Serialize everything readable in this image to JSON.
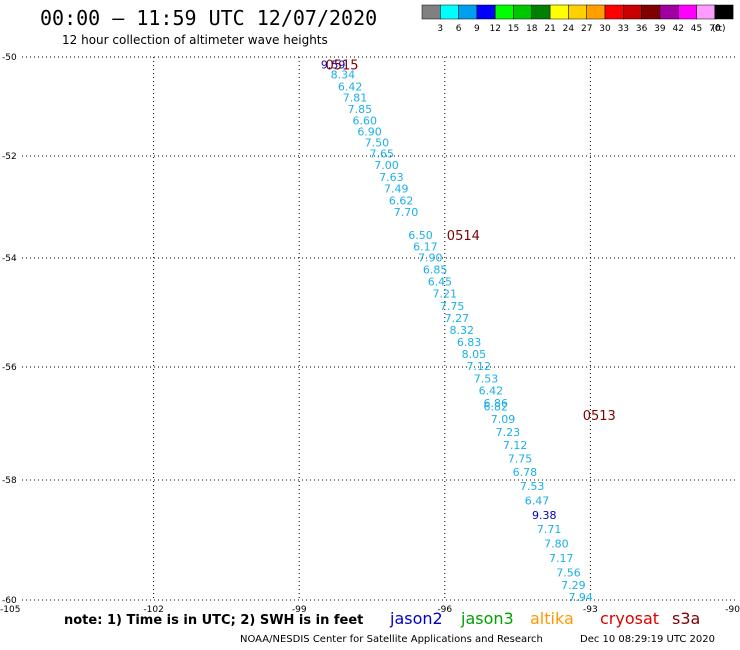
{
  "header": {
    "title": "00:00 – 11:59 UTC 12/07/2020",
    "subtitle": "12 hour collection of altimeter wave heights"
  },
  "legend": {
    "unit": "(ft)",
    "bins": [
      {
        "label": "3",
        "color": "#808080"
      },
      {
        "label": "6",
        "color": "#00ffff"
      },
      {
        "label": "9",
        "color": "#00a0f0"
      },
      {
        "label": "12",
        "color": "#0000ff"
      },
      {
        "label": "15",
        "color": "#00ff00"
      },
      {
        "label": "18",
        "color": "#00c800"
      },
      {
        "label": "21",
        "color": "#008000"
      },
      {
        "label": "24",
        "color": "#ffff00"
      },
      {
        "label": "27",
        "color": "#ffd000"
      },
      {
        "label": "30",
        "color": "#ffa000"
      },
      {
        "label": "33",
        "color": "#ff0000"
      },
      {
        "label": "36",
        "color": "#c80000"
      },
      {
        "label": "39",
        "color": "#800000"
      },
      {
        "label": "42",
        "color": "#a000a0"
      },
      {
        "label": "45",
        "color": "#ff00ff"
      },
      {
        "label": "70",
        "color": "#ff9cff"
      },
      {
        "label": "",
        "color": "#000000"
      }
    ]
  },
  "chart_data": {
    "type": "scatter",
    "xlabel": "",
    "ylabel": "",
    "xlim": [
      -105,
      -90
    ],
    "ylim": [
      -60,
      -50
    ],
    "x_ticks": [
      "-105",
      "-102",
      "-99",
      "-96",
      "-93",
      "-90"
    ],
    "y_ticks": [
      "-50",
      "-52",
      "-54",
      "-56",
      "-58",
      "-60"
    ],
    "grid": true,
    "colors": {
      "cyan": "#1ab0e8",
      "blue": "#0000c8",
      "pass": "#800000"
    },
    "pass_labels": [
      {
        "text": "0515",
        "x": -98.5,
        "y": -50.15
      },
      {
        "text": "0514",
        "x": -96.0,
        "y": -53.55
      },
      {
        "text": "0513",
        "x": -93.2,
        "y": -56.85
      }
    ],
    "points": [
      {
        "x": -98.3,
        "y": -50.15,
        "v": "9.59",
        "c": "blue"
      },
      {
        "x": -98.1,
        "y": -50.35,
        "v": "8.34",
        "c": "cyan"
      },
      {
        "x": -97.95,
        "y": -50.6,
        "v": "6.42",
        "c": "cyan"
      },
      {
        "x": -97.85,
        "y": -50.82,
        "v": "7.81",
        "c": "cyan"
      },
      {
        "x": -97.75,
        "y": -51.05,
        "v": "7.85",
        "c": "cyan"
      },
      {
        "x": -97.65,
        "y": -51.28,
        "v": "6.60",
        "c": "cyan"
      },
      {
        "x": -97.55,
        "y": -51.5,
        "v": "6.90",
        "c": "cyan"
      },
      {
        "x": -97.4,
        "y": -51.73,
        "v": "7.50",
        "c": "cyan"
      },
      {
        "x": -97.3,
        "y": -51.95,
        "v": "7.65",
        "c": "cyan"
      },
      {
        "x": -97.2,
        "y": -52.18,
        "v": "7.00",
        "c": "cyan"
      },
      {
        "x": -97.1,
        "y": -52.41,
        "v": "7.63",
        "c": "cyan"
      },
      {
        "x": -97.0,
        "y": -52.64,
        "v": "7.49",
        "c": "cyan"
      },
      {
        "x": -96.9,
        "y": -52.87,
        "v": "6.62",
        "c": "cyan"
      },
      {
        "x": -96.8,
        "y": -53.1,
        "v": "7.70",
        "c": "cyan"
      },
      {
        "x": -96.5,
        "y": -53.55,
        "v": "6.50",
        "c": "cyan"
      },
      {
        "x": -96.4,
        "y": -53.77,
        "v": "6.17",
        "c": "cyan"
      },
      {
        "x": -96.3,
        "y": -53.99,
        "v": "7.90",
        "c": "cyan"
      },
      {
        "x": -96.2,
        "y": -54.21,
        "v": "6.85",
        "c": "cyan"
      },
      {
        "x": -96.1,
        "y": -54.43,
        "v": "6.45",
        "c": "cyan"
      },
      {
        "x": -96.0,
        "y": -54.65,
        "v": "7.21",
        "c": "cyan"
      },
      {
        "x": -95.85,
        "y": -54.88,
        "v": "7.75",
        "c": "cyan"
      },
      {
        "x": -95.75,
        "y": -55.1,
        "v": "7.27",
        "c": "cyan"
      },
      {
        "x": -95.65,
        "y": -55.32,
        "v": "8.32",
        "c": "cyan"
      },
      {
        "x": -95.5,
        "y": -55.54,
        "v": "6.83",
        "c": "cyan"
      },
      {
        "x": -95.4,
        "y": -55.76,
        "v": "8.05",
        "c": "cyan"
      },
      {
        "x": -95.3,
        "y": -55.98,
        "v": "7.12",
        "c": "cyan"
      },
      {
        "x": -95.15,
        "y": -56.2,
        "v": "7.53",
        "c": "cyan"
      },
      {
        "x": -95.05,
        "y": -56.42,
        "v": "6.42",
        "c": "cyan"
      },
      {
        "x": -94.95,
        "y": -56.64,
        "v": "6.86",
        "c": "cyan"
      },
      {
        "x": -94.95,
        "y": -56.7,
        "v": "6.82",
        "c": "cyan"
      },
      {
        "x": -94.8,
        "y": -56.92,
        "v": "7.09",
        "c": "cyan"
      },
      {
        "x": -94.7,
        "y": -57.15,
        "v": "7.23",
        "c": "cyan"
      },
      {
        "x": -94.55,
        "y": -57.38,
        "v": "7.12",
        "c": "cyan"
      },
      {
        "x": -94.45,
        "y": -57.62,
        "v": "7.75",
        "c": "cyan"
      },
      {
        "x": -94.35,
        "y": -57.86,
        "v": "6.78",
        "c": "cyan"
      },
      {
        "x": -94.2,
        "y": -58.1,
        "v": "7.53",
        "c": "cyan"
      },
      {
        "x": -94.1,
        "y": -58.34,
        "v": "6.47",
        "c": "cyan"
      },
      {
        "x": -93.95,
        "y": -58.58,
        "v": "9.38",
        "c": "blue"
      },
      {
        "x": -93.85,
        "y": -58.82,
        "v": "7.71",
        "c": "cyan"
      },
      {
        "x": -93.7,
        "y": -59.06,
        "v": "7.80",
        "c": "cyan"
      },
      {
        "x": -93.6,
        "y": -59.3,
        "v": "7.17",
        "c": "cyan"
      },
      {
        "x": -93.45,
        "y": -59.54,
        "v": "7.56",
        "c": "cyan"
      },
      {
        "x": -93.35,
        "y": -59.75,
        "v": "7.29",
        "c": "cyan"
      },
      {
        "x": -93.2,
        "y": -59.95,
        "v": "7.94",
        "c": "cyan"
      }
    ]
  },
  "footer": {
    "note": "note: 1) Time is in UTC; 2) SWH is in feet",
    "satellites": [
      {
        "name": "jason2",
        "color": "#0000c8"
      },
      {
        "name": "jason3",
        "color": "#00a000"
      },
      {
        "name": "altika",
        "color": "#ff9900"
      },
      {
        "name": "cryosat",
        "color": "#e00000"
      },
      {
        "name": "s3a",
        "color": "#800000"
      }
    ],
    "credit": "NOAA/NESDIS Center for Satellite Applications and Research",
    "timestamp": "Dec 10 08:29:19 UTC 2020"
  }
}
